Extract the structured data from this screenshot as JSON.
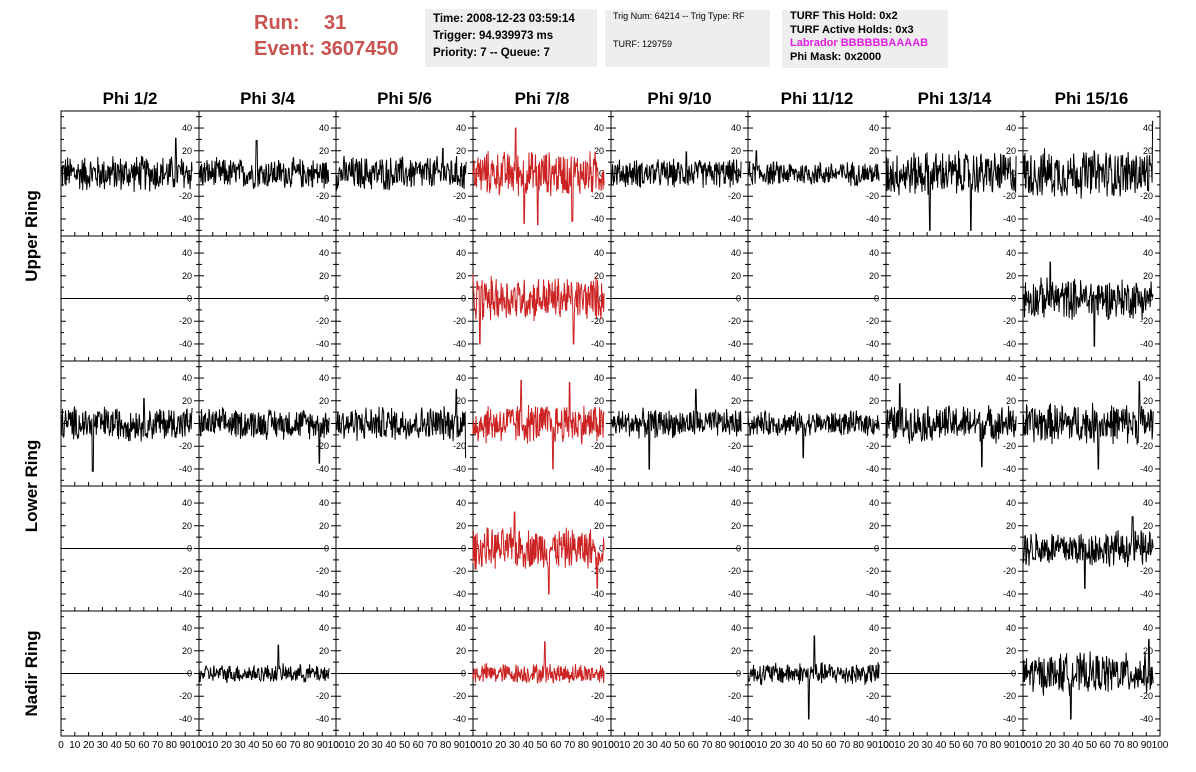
{
  "header": {
    "run_label": "Run:",
    "run_value": "31",
    "event_label": "Event:",
    "event_value": "3607450",
    "time_line": "Time: 2008-12-23 03:59:14",
    "trigger_line": "Trigger: 94.939973 ms",
    "priority_line": "Priority: 7 -- Queue: 7",
    "trig_line": "Trig Num: 64214 -- Trig Type: RF",
    "turf_line": "TURF: 129759",
    "turf_hold_line": "TURF This Hold: 0x2",
    "turf_active_line": "TURF Active Holds: 0x3",
    "labrador_line": "Labrador BBBBBBAAAAB",
    "phi_mask_line": "Phi Mask: 0x2000"
  },
  "colors": {
    "header_red": "#c9514f",
    "trace_black": "#000000",
    "trace_red": "#cc2222",
    "labrador_magenta": "#e01fe0",
    "box_bg": "#eeeeee"
  },
  "chart_data": {
    "type": "line",
    "columns": [
      "Phi 1/2",
      "Phi 3/4",
      "Phi 5/6",
      "Phi 7/8",
      "Phi 9/10",
      "Phi 11/12",
      "Phi 13/14",
      "Phi 15/16"
    ],
    "rows": [
      "Upper Ring",
      "Upper Ring",
      "Lower Ring",
      "Lower Ring",
      "Nadir Ring"
    ],
    "row_labels": [
      "Upper Ring",
      "Lower Ring",
      "Nadir Ring"
    ],
    "xlim": [
      0,
      100
    ],
    "ylim": [
      -55,
      55
    ],
    "x_ticks": [
      0,
      10,
      20,
      30,
      40,
      50,
      60,
      70,
      80,
      90,
      100
    ],
    "y_ticks": [
      -40,
      -20,
      0,
      20,
      40
    ],
    "highlight_column": "Phi 7/8",
    "amplitudes": [
      [
        18,
        15,
        17,
        22,
        14,
        12,
        22,
        24
      ],
      [
        0,
        0,
        0,
        22,
        0,
        0,
        0,
        20
      ],
      [
        17,
        15,
        17,
        20,
        14,
        12,
        18,
        20
      ],
      [
        0,
        0,
        0,
        20,
        0,
        0,
        0,
        18
      ],
      [
        0,
        9,
        0,
        10,
        0,
        11,
        0,
        20
      ]
    ],
    "peaks": [
      [
        [
          83,
          31
        ]
      ],
      [
        [
          42,
          29
        ]
      ],
      [
        [
          78,
          22
        ]
      ],
      [
        [
          31,
          40
        ],
        [
          37,
          -44
        ],
        [
          47,
          -45
        ],
        [
          72,
          -42
        ]
      ],
      [
        [
          55,
          19
        ]
      ],
      [
        [
          6,
          20
        ]
      ],
      [
        [
          32,
          -50
        ],
        [
          62,
          -50
        ]
      ],
      [
        [
          95,
          46
        ]
      ],
      [],
      [],
      [],
      [
        [
          5,
          -40
        ],
        [
          73,
          -40
        ]
      ],
      [],
      [],
      [],
      [
        [
          20,
          32
        ],
        [
          52,
          -42
        ]
      ],
      [
        [
          23,
          -42
        ],
        [
          60,
          22
        ]
      ],
      [
        [
          88,
          -35
        ]
      ],
      [
        [
          88,
          30
        ],
        [
          95,
          -30
        ]
      ],
      [
        [
          35,
          38
        ],
        [
          58,
          -40
        ],
        [
          70,
          36
        ]
      ],
      [
        [
          28,
          -40
        ],
        [
          62,
          30
        ]
      ],
      [
        [
          40,
          -30
        ]
      ],
      [
        [
          10,
          35
        ],
        [
          70,
          -38
        ]
      ],
      [
        [
          85,
          37
        ],
        [
          55,
          -40
        ]
      ],
      [],
      [],
      [],
      [
        [
          30,
          32
        ],
        [
          55,
          -40
        ],
        [
          90,
          -35
        ]
      ],
      [],
      [],
      [],
      [
        [
          45,
          -35
        ],
        [
          80,
          28
        ]
      ],
      [],
      [
        [
          58,
          25
        ]
      ],
      [],
      [
        [
          52,
          28
        ]
      ],
      [],
      [
        [
          48,
          33
        ],
        [
          44,
          -40
        ]
      ],
      [],
      [
        [
          92,
          30
        ],
        [
          35,
          -40
        ]
      ]
    ]
  }
}
